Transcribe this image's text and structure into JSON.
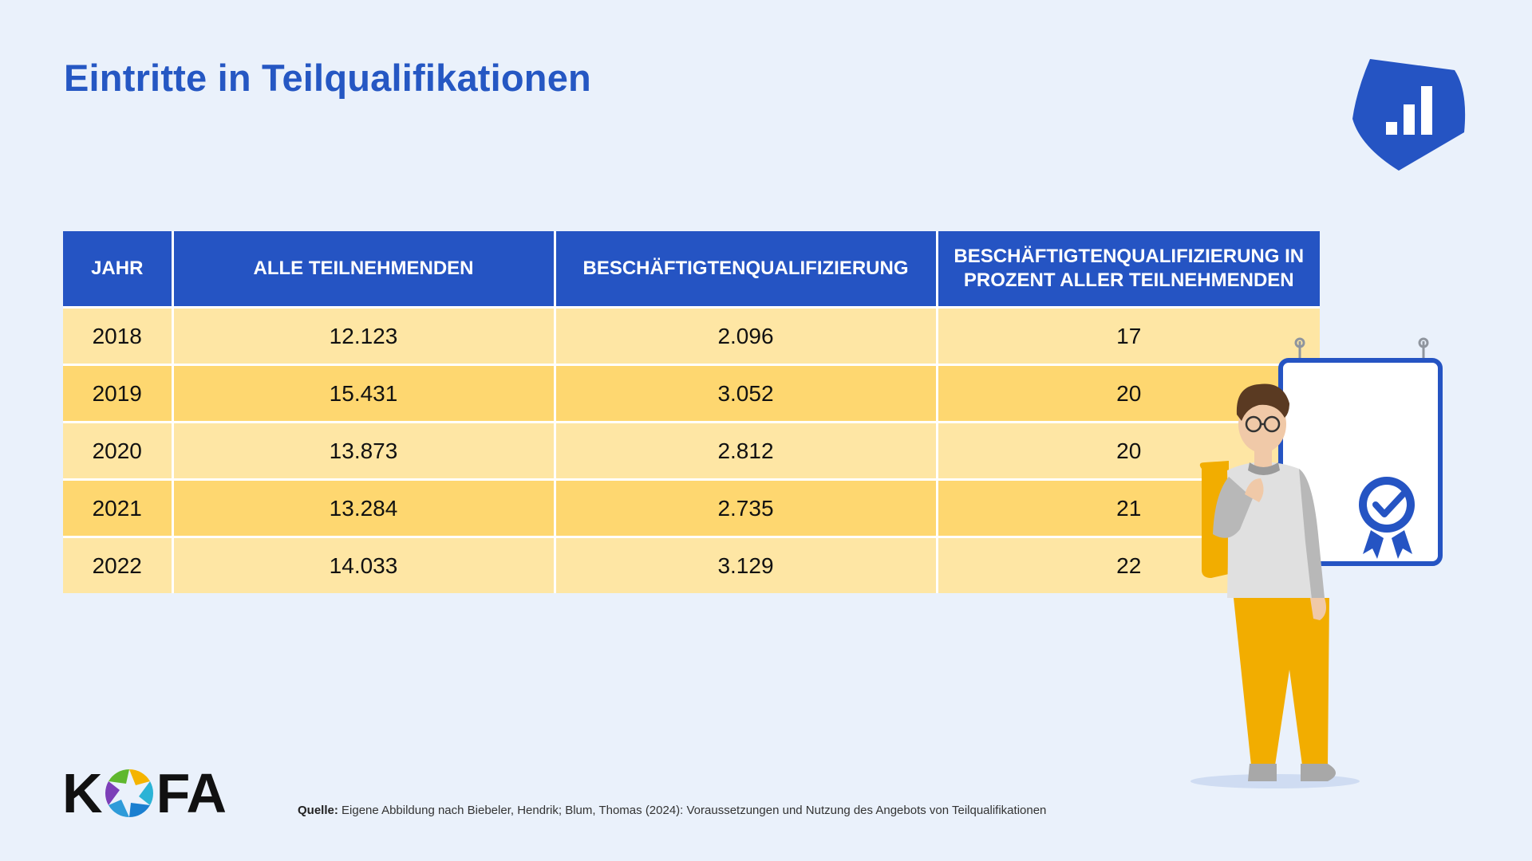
{
  "title": "Eintritte in Teilqualifikationen",
  "table": {
    "headers": [
      "JAHR",
      "ALLE TEILNEHMENDEN",
      "BESCHÄFTIGTENQUALIFIZIERUNG",
      "BESCHÄFTIGTENQUALIFIZIERUNG IN PROZENT ALLER TEILNEHMENDEN"
    ],
    "rows": [
      [
        "2018",
        "12.123",
        "2.096",
        "17"
      ],
      [
        "2019",
        "15.431",
        "3.052",
        "20"
      ],
      [
        "2020",
        "13.873",
        "2.812",
        "20"
      ],
      [
        "2021",
        "13.284",
        "2.735",
        "21"
      ],
      [
        "2022",
        "14.033",
        "3.129",
        "22"
      ]
    ]
  },
  "chart_data": {
    "type": "table",
    "title": "Eintritte in Teilqualifikationen",
    "columns": [
      "JAHR",
      "ALLE TEILNEHMENDEN",
      "BESCHÄFTIGTENQUALIFIZIERUNG",
      "BESCHÄFTIGTENQUALIFIZIERUNG IN PROZENT ALLER TEILNEHMENDEN"
    ],
    "rows": [
      [
        2018,
        12123,
        2096,
        17
      ],
      [
        2019,
        15431,
        3052,
        20
      ],
      [
        2020,
        13873,
        2812,
        20
      ],
      [
        2021,
        13284,
        2735,
        21
      ],
      [
        2022,
        14033,
        3129,
        22
      ]
    ]
  },
  "logo": {
    "letters": [
      "K",
      "FA"
    ]
  },
  "source": {
    "label": "Quelle:",
    "text": " Eigene Abbildung nach Biebeler, Hendrik; Blum, Thomas (2024): Voraussetzungen und Nutzung des Angebots von Teilqualifikationen"
  },
  "colors": {
    "brand_blue": "#2554c3",
    "row_light": "#fee6a4",
    "row_dark": "#fed770",
    "background": "#eaf1fb"
  },
  "icons": {
    "top_right": "bar-chart-shield-icon",
    "certificate": "certificate-badge-icon"
  }
}
